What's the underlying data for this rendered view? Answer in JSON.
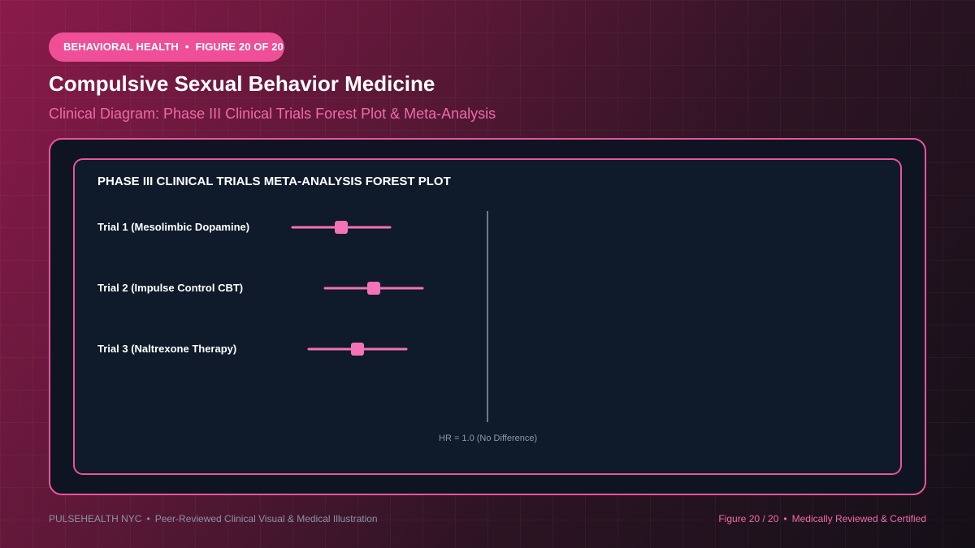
{
  "header": {
    "category": "BEHAVIORAL HEALTH",
    "figure": "FIGURE 20 OF 20",
    "title": "Compulsive Sexual Behavior Medicine",
    "subtitle": "Clinical Diagram: Phase III Clinical Trials Forest Plot & Meta-Analysis"
  },
  "footer": {
    "brand": "PULSEHEALTH NYC",
    "tagline": "Peer-Reviewed Clinical Visual & Medical Illustration",
    "figure": "Figure 20 / 20",
    "certification": "Medically Reviewed & Certified"
  },
  "colors": {
    "accent": "#ee4f97",
    "marker": "#f472b6",
    "reference_line": "#8d98ab"
  },
  "chart_data": {
    "type": "forest",
    "title": "PHASE III CLINICAL TRIALS META-ANALYSIS FOREST PLOT",
    "reference_value": 1.0,
    "reference_label": "HR = 1.0 (No Difference)",
    "x_range": [
      0.0,
      1.5
    ],
    "trials": [
      {
        "label": "Trial 1 (Mesolimbic Dopamine)",
        "estimate": 0.6,
        "ci": [
          0.45,
          0.75
        ]
      },
      {
        "label": "Trial 2 (Impulse Control CBT)",
        "estimate": 0.7,
        "ci": [
          0.55,
          0.85
        ]
      },
      {
        "label": "Trial 3 (Naltrexone Therapy)",
        "estimate": 0.65,
        "ci": [
          0.5,
          0.8
        ]
      }
    ]
  }
}
